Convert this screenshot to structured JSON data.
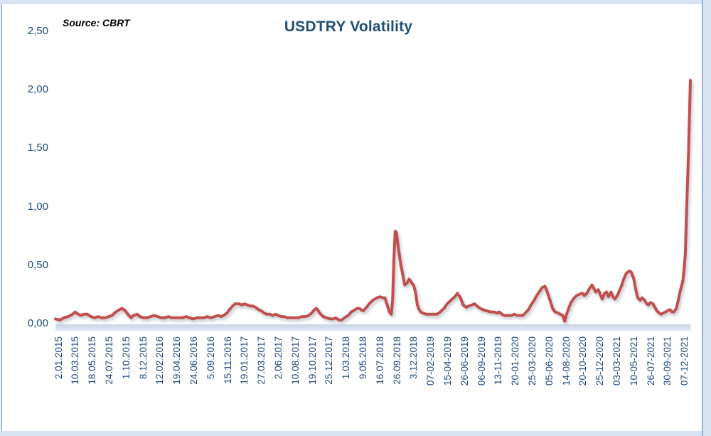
{
  "header": {
    "title": "USDTRY Volatility",
    "source_note": "Source: CBRT"
  },
  "colors": {
    "title": "#1F4E79",
    "axis_labels": "#1F497D",
    "line": "#C0504D",
    "frame_margin": "#d7e2f2",
    "frame_border": "#9ab6da",
    "baseline_band": "#d9e3f2"
  },
  "chart_data": {
    "type": "line",
    "title": "USDTRY Volatility",
    "source": "Source: CBRT",
    "legend": "none",
    "grid": "off",
    "x_encoding": "t = fraction of x-axis; 0 = 2.01.2015 (first tick), 1 = 07-12-2021 (last tick); weekly data",
    "x_tick_labels": [
      "2.01.2015",
      "10.03.2015",
      "18.05.2015",
      "24.07.2015",
      "1.10.2015",
      "8.12.2015",
      "12.02.2016",
      "19.04.2016",
      "24.06.2016",
      "5.09.2016",
      "15.11.2016",
      "19.01.2017",
      "27.03.2017",
      "2.06.2017",
      "10.08.2017",
      "19.10.2017",
      "25.12.2017",
      "1.03.2018",
      "9.05.2018",
      "16.07.2018",
      "26.09.2018",
      "3.12.2018",
      "07-02-2019",
      "15-04-2019",
      "26-06-2019",
      "06-09-2019",
      "13-11-2019",
      "20-01-2020",
      "25-03-2020",
      "05-06-2020",
      "14-08-2020",
      "20-10-2020",
      "25-12-2020",
      "03-03-2021",
      "10-05-2021",
      "26-07-2021",
      "30-09-2021",
      "07-12-2021"
    ],
    "y_axis": {
      "min": 0,
      "max": 2.5,
      "tick_step": 0.5,
      "tick_values": [
        0,
        0.5,
        1.0,
        1.5,
        2.0,
        2.5
      ],
      "tick_labels": [
        "0,00",
        "0,50",
        "1,00",
        "1,50",
        "2,00",
        "2,50"
      ]
    },
    "series": [
      {
        "name": "USDTRY volatility",
        "color": "#C0504D",
        "points": [
          [
            0.0,
            0.04
          ],
          [
            0.007,
            0.03
          ],
          [
            0.013,
            0.05
          ],
          [
            0.02,
            0.06
          ],
          [
            0.027,
            0.08
          ],
          [
            0.031,
            0.1
          ],
          [
            0.036,
            0.08
          ],
          [
            0.04,
            0.07
          ],
          [
            0.045,
            0.08
          ],
          [
            0.05,
            0.08
          ],
          [
            0.056,
            0.06
          ],
          [
            0.062,
            0.05
          ],
          [
            0.067,
            0.06
          ],
          [
            0.073,
            0.05
          ],
          [
            0.078,
            0.05
          ],
          [
            0.084,
            0.06
          ],
          [
            0.089,
            0.07
          ],
          [
            0.095,
            0.1
          ],
          [
            0.101,
            0.12
          ],
          [
            0.105,
            0.13
          ],
          [
            0.11,
            0.11
          ],
          [
            0.114,
            0.08
          ],
          [
            0.119,
            0.05
          ],
          [
            0.123,
            0.07
          ],
          [
            0.129,
            0.08
          ],
          [
            0.133,
            0.06
          ],
          [
            0.139,
            0.05
          ],
          [
            0.144,
            0.05
          ],
          [
            0.15,
            0.06
          ],
          [
            0.155,
            0.07
          ],
          [
            0.161,
            0.06
          ],
          [
            0.167,
            0.05
          ],
          [
            0.172,
            0.05
          ],
          [
            0.178,
            0.06
          ],
          [
            0.183,
            0.05
          ],
          [
            0.189,
            0.05
          ],
          [
            0.195,
            0.05
          ],
          [
            0.2,
            0.05
          ],
          [
            0.206,
            0.06
          ],
          [
            0.211,
            0.05
          ],
          [
            0.217,
            0.04
          ],
          [
            0.223,
            0.05
          ],
          [
            0.228,
            0.05
          ],
          [
            0.234,
            0.05
          ],
          [
            0.239,
            0.06
          ],
          [
            0.245,
            0.05
          ],
          [
            0.251,
            0.06
          ],
          [
            0.256,
            0.07
          ],
          [
            0.261,
            0.06
          ],
          [
            0.265,
            0.07
          ],
          [
            0.27,
            0.09
          ],
          [
            0.274,
            0.12
          ],
          [
            0.279,
            0.15
          ],
          [
            0.283,
            0.17
          ],
          [
            0.289,
            0.17
          ],
          [
            0.293,
            0.16
          ],
          [
            0.298,
            0.17
          ],
          [
            0.302,
            0.16
          ],
          [
            0.307,
            0.15
          ],
          [
            0.311,
            0.15
          ],
          [
            0.315,
            0.14
          ],
          [
            0.32,
            0.12
          ],
          [
            0.324,
            0.11
          ],
          [
            0.329,
            0.09
          ],
          [
            0.333,
            0.08
          ],
          [
            0.338,
            0.08
          ],
          [
            0.342,
            0.07
          ],
          [
            0.347,
            0.08
          ],
          [
            0.351,
            0.07
          ],
          [
            0.356,
            0.06
          ],
          [
            0.36,
            0.06
          ],
          [
            0.366,
            0.05
          ],
          [
            0.371,
            0.05
          ],
          [
            0.377,
            0.05
          ],
          [
            0.383,
            0.05
          ],
          [
            0.388,
            0.06
          ],
          [
            0.394,
            0.06
          ],
          [
            0.399,
            0.07
          ],
          [
            0.405,
            0.1
          ],
          [
            0.408,
            0.12
          ],
          [
            0.411,
            0.13
          ],
          [
            0.413,
            0.12
          ],
          [
            0.416,
            0.09
          ],
          [
            0.422,
            0.06
          ],
          [
            0.427,
            0.05
          ],
          [
            0.433,
            0.04
          ],
          [
            0.438,
            0.04
          ],
          [
            0.441,
            0.05
          ],
          [
            0.444,
            0.04
          ],
          [
            0.447,
            0.03
          ],
          [
            0.45,
            0.03
          ],
          [
            0.453,
            0.04
          ],
          [
            0.455,
            0.05
          ],
          [
            0.461,
            0.07
          ],
          [
            0.466,
            0.1
          ],
          [
            0.472,
            0.12
          ],
          [
            0.475,
            0.13
          ],
          [
            0.479,
            0.13
          ],
          [
            0.481,
            0.12
          ],
          [
            0.485,
            0.11
          ],
          [
            0.49,
            0.14
          ],
          [
            0.494,
            0.17
          ],
          [
            0.5,
            0.2
          ],
          [
            0.506,
            0.22
          ],
          [
            0.511,
            0.23
          ],
          [
            0.516,
            0.22
          ],
          [
            0.519,
            0.22
          ],
          [
            0.522,
            0.17
          ],
          [
            0.526,
            0.1
          ],
          [
            0.529,
            0.08
          ],
          [
            0.531,
            0.2
          ],
          [
            0.533,
            0.55
          ],
          [
            0.535,
            0.79
          ],
          [
            0.537,
            0.78
          ],
          [
            0.54,
            0.65
          ],
          [
            0.544,
            0.5
          ],
          [
            0.547,
            0.42
          ],
          [
            0.55,
            0.33
          ],
          [
            0.554,
            0.35
          ],
          [
            0.557,
            0.38
          ],
          [
            0.56,
            0.36
          ],
          [
            0.562,
            0.34
          ],
          [
            0.564,
            0.33
          ],
          [
            0.567,
            0.27
          ],
          [
            0.57,
            0.16
          ],
          [
            0.572,
            0.13
          ],
          [
            0.575,
            0.1
          ],
          [
            0.579,
            0.09
          ],
          [
            0.584,
            0.08
          ],
          [
            0.59,
            0.08
          ],
          [
            0.595,
            0.08
          ],
          [
            0.601,
            0.08
          ],
          [
            0.606,
            0.1
          ],
          [
            0.612,
            0.13
          ],
          [
            0.617,
            0.17
          ],
          [
            0.623,
            0.2
          ],
          [
            0.629,
            0.23
          ],
          [
            0.633,
            0.26
          ],
          [
            0.638,
            0.22
          ],
          [
            0.642,
            0.16
          ],
          [
            0.647,
            0.14
          ],
          [
            0.651,
            0.15
          ],
          [
            0.656,
            0.16
          ],
          [
            0.66,
            0.17
          ],
          [
            0.664,
            0.15
          ],
          [
            0.669,
            0.13
          ],
          [
            0.673,
            0.12
          ],
          [
            0.679,
            0.11
          ],
          [
            0.685,
            0.1
          ],
          [
            0.69,
            0.1
          ],
          [
            0.696,
            0.09
          ],
          [
            0.699,
            0.1
          ],
          [
            0.703,
            0.08
          ],
          [
            0.707,
            0.07
          ],
          [
            0.713,
            0.07
          ],
          [
            0.718,
            0.07
          ],
          [
            0.723,
            0.08
          ],
          [
            0.727,
            0.07
          ],
          [
            0.732,
            0.07
          ],
          [
            0.736,
            0.07
          ],
          [
            0.74,
            0.09
          ],
          [
            0.745,
            0.12
          ],
          [
            0.749,
            0.16
          ],
          [
            0.754,
            0.2
          ],
          [
            0.758,
            0.24
          ],
          [
            0.763,
            0.28
          ],
          [
            0.767,
            0.31
          ],
          [
            0.771,
            0.32
          ],
          [
            0.774,
            0.28
          ],
          [
            0.779,
            0.2
          ],
          [
            0.783,
            0.13
          ],
          [
            0.787,
            0.1
          ],
          [
            0.792,
            0.09
          ],
          [
            0.795,
            0.08
          ],
          [
            0.799,
            0.07
          ],
          [
            0.802,
            0.02
          ],
          [
            0.805,
            0.08
          ],
          [
            0.809,
            0.14
          ],
          [
            0.812,
            0.18
          ],
          [
            0.817,
            0.22
          ],
          [
            0.821,
            0.24
          ],
          [
            0.825,
            0.25
          ],
          [
            0.83,
            0.26
          ],
          [
            0.833,
            0.24
          ],
          [
            0.837,
            0.26
          ],
          [
            0.841,
            0.3
          ],
          [
            0.845,
            0.33
          ],
          [
            0.848,
            0.3
          ],
          [
            0.851,
            0.27
          ],
          [
            0.855,
            0.29
          ],
          [
            0.858,
            0.25
          ],
          [
            0.861,
            0.21
          ],
          [
            0.865,
            0.26
          ],
          [
            0.868,
            0.27
          ],
          [
            0.871,
            0.23
          ],
          [
            0.875,
            0.27
          ],
          [
            0.878,
            0.23
          ],
          [
            0.881,
            0.21
          ],
          [
            0.885,
            0.24
          ],
          [
            0.888,
            0.28
          ],
          [
            0.892,
            0.33
          ],
          [
            0.895,
            0.38
          ],
          [
            0.899,
            0.43
          ],
          [
            0.904,
            0.45
          ],
          [
            0.907,
            0.44
          ],
          [
            0.911,
            0.38
          ],
          [
            0.914,
            0.29
          ],
          [
            0.917,
            0.22
          ],
          [
            0.921,
            0.2
          ],
          [
            0.924,
            0.22
          ],
          [
            0.928,
            0.2
          ],
          [
            0.931,
            0.17
          ],
          [
            0.934,
            0.16
          ],
          [
            0.937,
            0.18
          ],
          [
            0.941,
            0.17
          ],
          [
            0.944,
            0.14
          ],
          [
            0.947,
            0.11
          ],
          [
            0.951,
            0.09
          ],
          [
            0.954,
            0.08
          ],
          [
            0.957,
            0.09
          ],
          [
            0.961,
            0.1
          ],
          [
            0.964,
            0.11
          ],
          [
            0.968,
            0.12
          ],
          [
            0.971,
            0.1
          ],
          [
            0.974,
            0.1
          ],
          [
            0.978,
            0.13
          ],
          [
            0.981,
            0.2
          ],
          [
            0.984,
            0.28
          ],
          [
            0.988,
            0.36
          ],
          [
            0.99,
            0.46
          ],
          [
            0.992,
            0.6
          ],
          [
            0.994,
            0.95
          ],
          [
            0.997,
            1.45
          ],
          [
            1.0,
            2.08
          ]
        ]
      }
    ]
  }
}
